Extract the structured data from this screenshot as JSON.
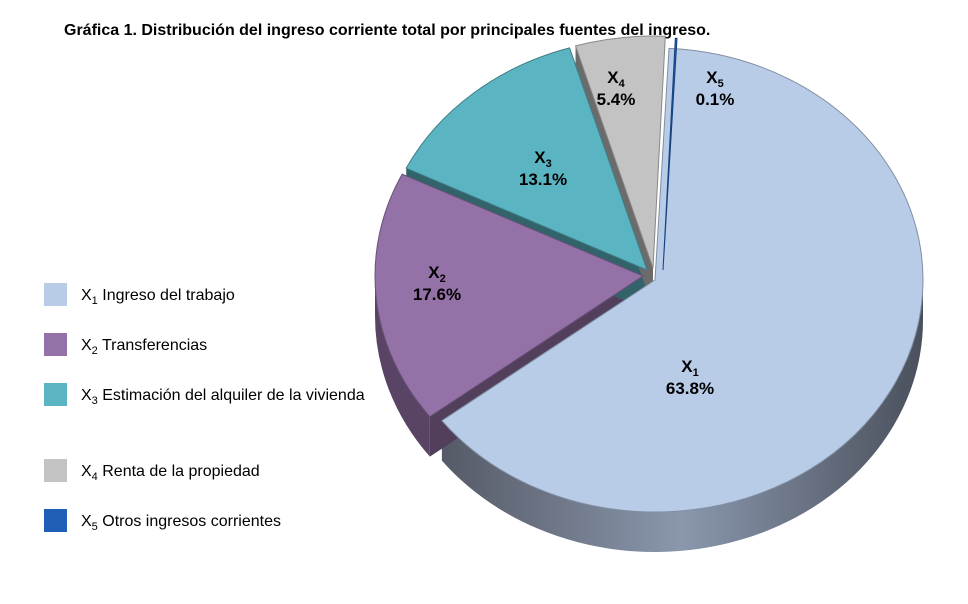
{
  "chart_data": {
    "type": "pie",
    "title": "Gráfica 1. Distribución del ingreso corriente total por principales fuentes del ingreso.",
    "slices": [
      {
        "key": "X1",
        "base": "X",
        "sub": "1",
        "value": 63.8,
        "value_label": "63.8%",
        "name": "Ingreso del trabajo",
        "color": "#b8cce8"
      },
      {
        "key": "X2",
        "base": "X",
        "sub": "2",
        "value": 17.6,
        "value_label": "17.6%",
        "name": "Transferencias",
        "color": "#9472a8"
      },
      {
        "key": "X3",
        "base": "X",
        "sub": "3",
        "value": 13.1,
        "value_label": "13.1%",
        "name": "Estimación del alquiler de la vivienda",
        "color": "#5bb4c1"
      },
      {
        "key": "X4",
        "base": "X",
        "sub": "4",
        "value": 5.4,
        "value_label": "5.4%",
        "name": "Renta de la propiedad",
        "color": "#c3c3c3"
      },
      {
        "key": "X5",
        "base": "X",
        "sub": "5",
        "value": 0.1,
        "value_label": "0.1%",
        "name": "Otros ingresos corrientes",
        "color": "#1f5fb5"
      }
    ],
    "legend_position": "left"
  }
}
